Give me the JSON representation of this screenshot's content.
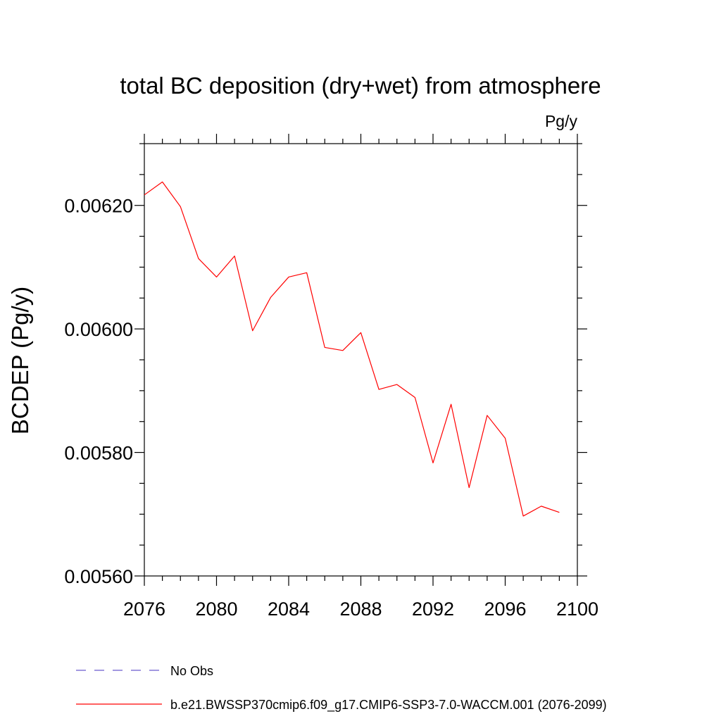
{
  "chart_data": {
    "type": "line",
    "title": "total BC deposition (dry+wet) from atmosphere",
    "units_label": "Pg/y",
    "xlabel": "",
    "ylabel": "BCDEP  (Pg/y)",
    "xlim": [
      2076,
      2100
    ],
    "ylim": [
      0.0056,
      0.0063
    ],
    "x_ticks": [
      2076,
      2080,
      2084,
      2088,
      2092,
      2096,
      2100
    ],
    "x_tick_labels": [
      "2076",
      "2080",
      "2084",
      "2088",
      "2092",
      "2096",
      "2100"
    ],
    "y_ticks": [
      0.0056,
      0.0058,
      0.006,
      0.0062
    ],
    "y_tick_labels": [
      "0.00560",
      "0.00580",
      "0.00600",
      "0.00620"
    ],
    "grid": false,
    "series": [
      {
        "name": "b.e21.BWSSP370cmip6.f09_g17.CMIP6-SSP3-7.0-WACCM.001 (2076-2099)",
        "color": "#ff0000",
        "style": "solid",
        "x": [
          2076,
          2077,
          2078,
          2079,
          2080,
          2081,
          2082,
          2083,
          2084,
          2085,
          2086,
          2087,
          2088,
          2089,
          2090,
          2091,
          2092,
          2093,
          2094,
          2095,
          2096,
          2097,
          2098,
          2099
        ],
        "y": [
          0.006217,
          0.006238,
          0.006198,
          0.006114,
          0.006084,
          0.006118,
          0.005997,
          0.006051,
          0.006084,
          0.006091,
          0.00597,
          0.005965,
          0.005994,
          0.005902,
          0.00591,
          0.005889,
          0.005783,
          0.005878,
          0.005743,
          0.00586,
          0.005823,
          0.005697,
          0.005713,
          0.005703
        ]
      }
    ],
    "legend": {
      "placement": "bottom",
      "entries": [
        {
          "label": "No Obs",
          "color": "#6a5acd",
          "style": "dashed"
        },
        {
          "label": "b.e21.BWSSP370cmip6.f09_g17.CMIP6-SSP3-7.0-WACCM.001 (2076-2099)",
          "color": "#ff0000",
          "style": "solid"
        }
      ]
    }
  }
}
